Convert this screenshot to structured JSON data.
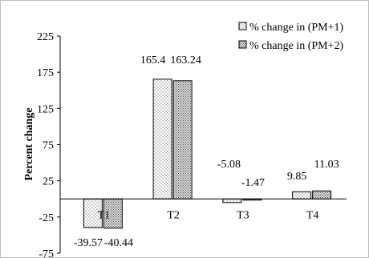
{
  "chart_data": {
    "type": "bar",
    "categories": [
      "T1",
      "T2",
      "T3",
      "T4"
    ],
    "series": [
      {
        "name": "% change in (PM+1)",
        "values": [
          -39.57,
          165.4,
          -5.08,
          9.85
        ],
        "data_labels": [
          "-39.57",
          "165.4",
          "-5.08",
          "9.85"
        ],
        "pattern": "dots",
        "color": "#ffffff"
      },
      {
        "name": "% change in (PM+2)",
        "values": [
          -40.44,
          163.24,
          -1.47,
          11.03
        ],
        "data_labels": [
          "-40.44",
          "163.24",
          "-1.47",
          "11.03"
        ],
        "pattern": "grid",
        "color": "#d9d9d9"
      }
    ],
    "title": "",
    "xlabel": "",
    "ylabel": "Percent change",
    "ylim": [
      -75,
      225
    ],
    "yticks": [
      -75,
      -25,
      25,
      75,
      125,
      175,
      225
    ],
    "ytick_labels": [
      "-75",
      "-25",
      "25",
      "75",
      "125",
      "175",
      "225"
    ],
    "grid": false,
    "legend_position": "top-right"
  }
}
